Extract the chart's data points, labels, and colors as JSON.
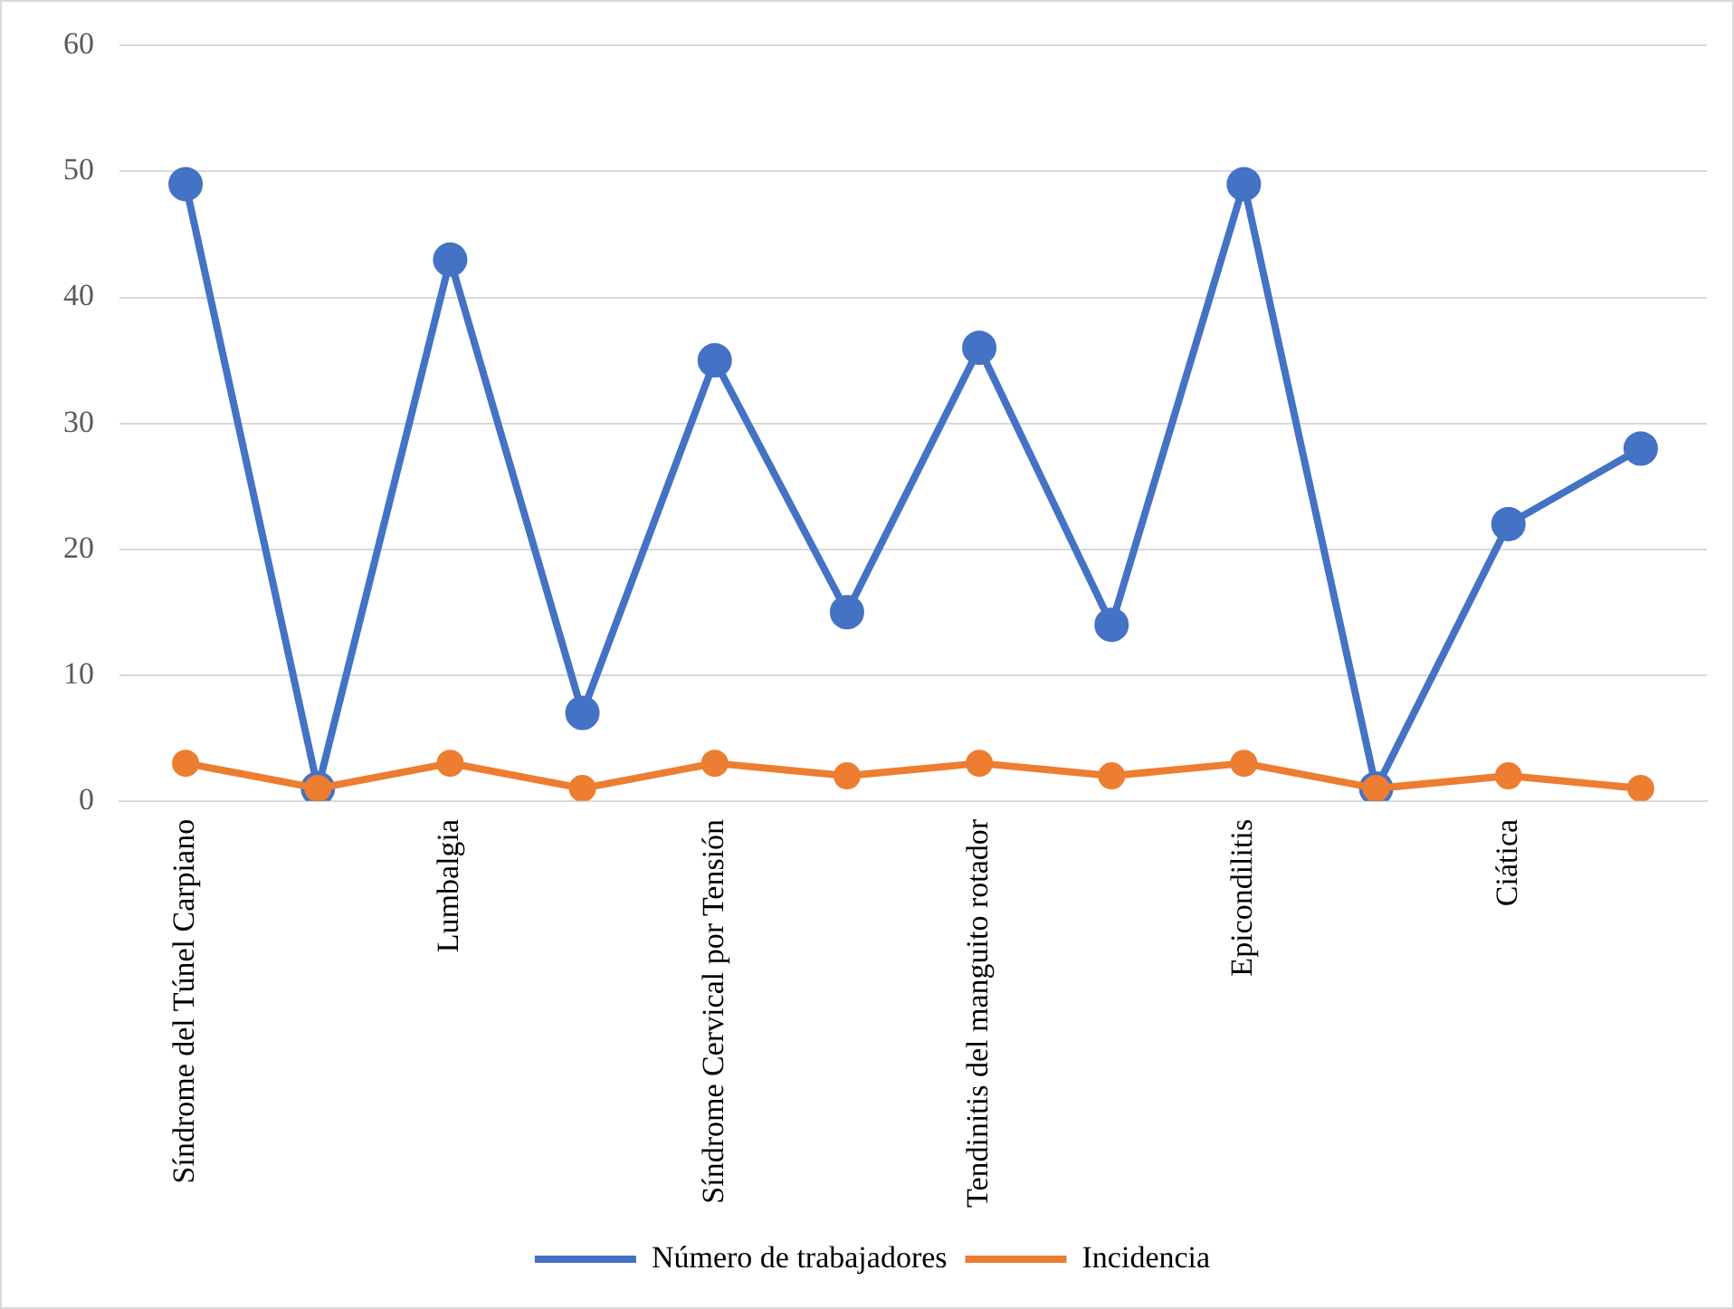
{
  "chart_data": {
    "type": "line",
    "categories": [
      "Síndrome del Túnel Carpiano",
      null,
      "Lumbalgia",
      null,
      "Síndrome Cervical por Tensión",
      null,
      "Tendinitis del manguito rotador",
      null,
      "Epicondilitis",
      null,
      "Ciática",
      null
    ],
    "series": [
      {
        "name": "Número de trabajadores",
        "color": "#4472c4",
        "values": [
          49,
          1,
          43,
          7,
          35,
          15,
          36,
          14,
          49,
          1,
          22,
          28
        ]
      },
      {
        "name": "Incidencia",
        "color": "#ed7d31",
        "values": [
          3,
          1,
          3,
          1,
          3,
          2,
          3,
          2,
          3,
          1,
          2,
          1
        ]
      }
    ],
    "ylim": [
      0,
      60
    ],
    "yticks": [
      0,
      10,
      20,
      30,
      40,
      50,
      60
    ],
    "grid": "y",
    "legend": "bottom",
    "marker": "circle",
    "line_style": "solid"
  }
}
